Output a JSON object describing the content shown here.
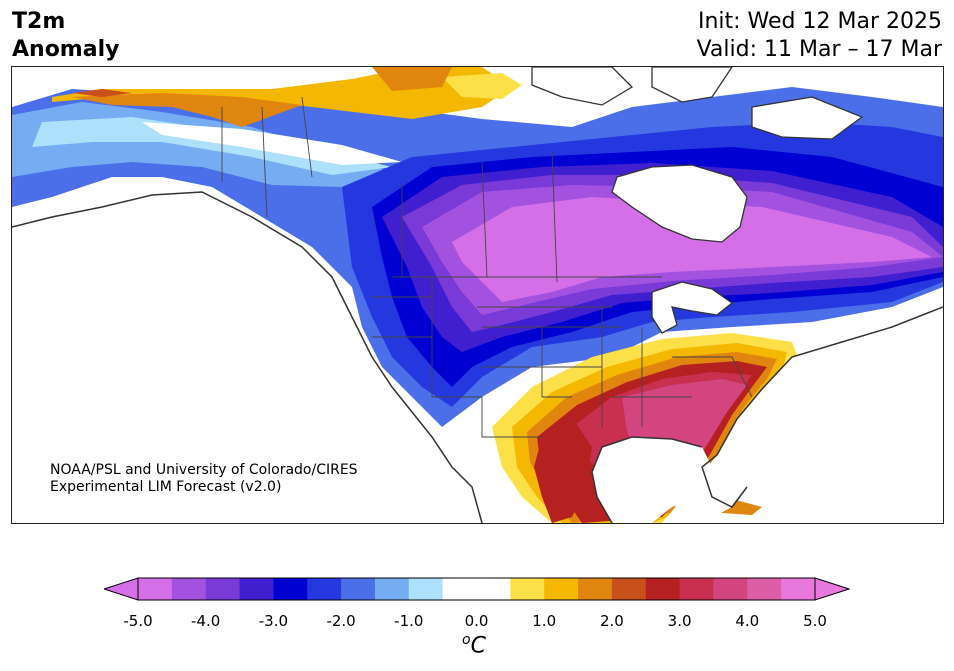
{
  "header": {
    "title_line1": "T2m",
    "title_line2": "Anomaly",
    "init": "Init: Wed 12 Mar 2025",
    "valid": "Valid: 11 Mar – 17 Mar"
  },
  "credit": {
    "line1": "NOAA/PSL and University of Colorado/CIRES",
    "line2": "Experimental LIM Forecast (v2.0)"
  },
  "colorbar": {
    "unit_base": "C",
    "unit_sup": "o",
    "tick_labels": [
      "-5.0",
      "-4.0",
      "-3.0",
      "-2.0",
      "-1.0",
      "0.0",
      "1.0",
      "2.0",
      "3.0",
      "4.0",
      "5.0"
    ],
    "colors": [
      "#d46fe8",
      "#a352e0",
      "#7a3ad8",
      "#3f1fcf",
      "#0000d2",
      "#2538df",
      "#4b6fe8",
      "#76adf2",
      "#ade1fb",
      "#ffffff",
      "#ffffff",
      "#fde047",
      "#f5b800",
      "#e0860f",
      "#c8501b",
      "#b52121",
      "#c9304f",
      "#d2457e",
      "#dc5fa5",
      "#e878dc"
    ],
    "under_color": "#d46fe8",
    "over_color": "#e878dc"
  },
  "map": {
    "land_outline_color": "#333333",
    "region": "North America"
  }
}
